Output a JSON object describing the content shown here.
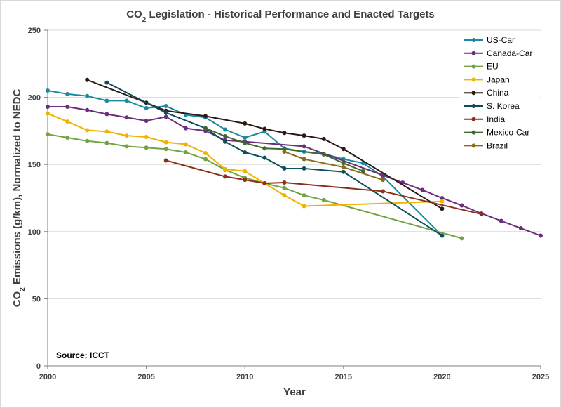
{
  "chart_data": {
    "type": "line",
    "title": "CO2 Legislation - Historical Performance and Enacted Targets",
    "title_parts": {
      "prefix": "CO",
      "subscript": "2",
      "suffix": " Legislation - Historical Performance and Enacted Targets"
    },
    "xlabel": "Year",
    "ylabel": "CO2 Emissions (g/km), Normalized to NEDC",
    "ylabel_parts": {
      "prefix": "CO",
      "subscript": "2",
      "suffix": " Emissions (g/km), Normalized to NEDC"
    },
    "xlim": [
      2000,
      2025
    ],
    "ylim": [
      0,
      250
    ],
    "x_ticks": [
      2000,
      2005,
      2010,
      2015,
      2020,
      2025
    ],
    "y_ticks": [
      0,
      50,
      100,
      150,
      200,
      250
    ],
    "grid": "horizontal",
    "legend_position": "top-right",
    "annotation": "Source: ICCT",
    "series": [
      {
        "name": "US-Car",
        "color": "#1B8A9E",
        "points": [
          [
            2000,
            205
          ],
          [
            2001,
            202.5
          ],
          [
            2002,
            201
          ],
          [
            2003,
            197.5
          ],
          [
            2004,
            197.5
          ],
          [
            2005,
            192
          ],
          [
            2006,
            193.5
          ],
          [
            2007,
            187
          ],
          [
            2008,
            185
          ],
          [
            2009,
            176
          ],
          [
            2010,
            170
          ],
          [
            2011,
            174.5
          ],
          [
            2012,
            162
          ],
          [
            2013,
            159.5
          ],
          [
            2014,
            158
          ],
          [
            2015,
            154
          ],
          [
            2016,
            151
          ],
          [
            2017,
            141
          ],
          [
            2020,
            97
          ]
        ]
      },
      {
        "name": "Canada-Car",
        "color": "#6B2D7C",
        "points": [
          [
            2000,
            193
          ],
          [
            2001,
            193
          ],
          [
            2002,
            190.5
          ],
          [
            2003,
            187.5
          ],
          [
            2004,
            185
          ],
          [
            2005,
            182.5
          ],
          [
            2006,
            185.5
          ],
          [
            2007,
            177
          ],
          [
            2008,
            175
          ],
          [
            2009,
            168
          ],
          [
            2010,
            167
          ],
          [
            2013,
            163.5
          ],
          [
            2017,
            142
          ],
          [
            2018,
            136.5
          ],
          [
            2019,
            131
          ],
          [
            2020,
            125
          ],
          [
            2021,
            119.5
          ],
          [
            2022,
            113.5
          ],
          [
            2023,
            108
          ],
          [
            2024,
            102.5
          ],
          [
            2025,
            97
          ]
        ]
      },
      {
        "name": "EU",
        "color": "#72A345",
        "points": [
          [
            2000,
            172.5
          ],
          [
            2001,
            170
          ],
          [
            2002,
            167.5
          ],
          [
            2003,
            166
          ],
          [
            2004,
            163.5
          ],
          [
            2005,
            162.5
          ],
          [
            2006,
            161.5
          ],
          [
            2007,
            159
          ],
          [
            2008,
            154
          ],
          [
            2009,
            146
          ],
          [
            2010,
            140
          ],
          [
            2011,
            136
          ],
          [
            2012,
            132.5
          ],
          [
            2013,
            127
          ],
          [
            2014,
            123.5
          ],
          [
            2021,
            95
          ]
        ]
      },
      {
        "name": "Japan",
        "color": "#F2B300",
        "points": [
          [
            2000,
            188
          ],
          [
            2001,
            182
          ],
          [
            2002,
            175.5
          ],
          [
            2003,
            174.5
          ],
          [
            2004,
            171.5
          ],
          [
            2005,
            170.5
          ],
          [
            2006,
            166.5
          ],
          [
            2007,
            165
          ],
          [
            2008,
            158.5
          ],
          [
            2009,
            146.5
          ],
          [
            2010,
            145
          ],
          [
            2011,
            136
          ],
          [
            2012,
            127
          ],
          [
            2013,
            119
          ],
          [
            2020,
            122.5
          ]
        ]
      },
      {
        "name": "China",
        "color": "#2B1A14",
        "points": [
          [
            2002,
            213
          ],
          [
            2005,
            196
          ],
          [
            2006,
            190
          ],
          [
            2008,
            186
          ],
          [
            2010,
            180.5
          ],
          [
            2011,
            176.5
          ],
          [
            2012,
            173.5
          ],
          [
            2013,
            171.5
          ],
          [
            2014,
            169
          ],
          [
            2015,
            161.5
          ],
          [
            2020,
            117
          ]
        ]
      },
      {
        "name": "S. Korea",
        "color": "#0F4C5C",
        "points": [
          [
            2003,
            211
          ],
          [
            2006,
            188.5
          ],
          [
            2008,
            177
          ],
          [
            2009,
            167
          ],
          [
            2010,
            159
          ],
          [
            2011,
            155
          ],
          [
            2012,
            147
          ],
          [
            2013,
            147
          ],
          [
            2015,
            144.5
          ],
          [
            2020,
            97
          ]
        ]
      },
      {
        "name": "India",
        "color": "#8B2E1A",
        "points": [
          [
            2006,
            153
          ],
          [
            2009,
            141
          ],
          [
            2010,
            138.5
          ],
          [
            2011,
            136
          ],
          [
            2012,
            136.5
          ],
          [
            2017,
            130
          ],
          [
            2022,
            113
          ]
        ]
      },
      {
        "name": "Mexico-Car",
        "color": "#3E6B2A",
        "points": [
          [
            2008,
            177
          ],
          [
            2009,
            171
          ],
          [
            2010,
            166
          ],
          [
            2011,
            162
          ],
          [
            2012,
            161.5
          ],
          [
            2014,
            157.5
          ],
          [
            2015,
            151
          ],
          [
            2016,
            145
          ]
        ]
      },
      {
        "name": "Brazil",
        "color": "#8B6A1C",
        "points": [
          [
            2012,
            159.5
          ],
          [
            2013,
            154
          ],
          [
            2015,
            148
          ],
          [
            2017,
            138.5
          ]
        ]
      }
    ]
  }
}
